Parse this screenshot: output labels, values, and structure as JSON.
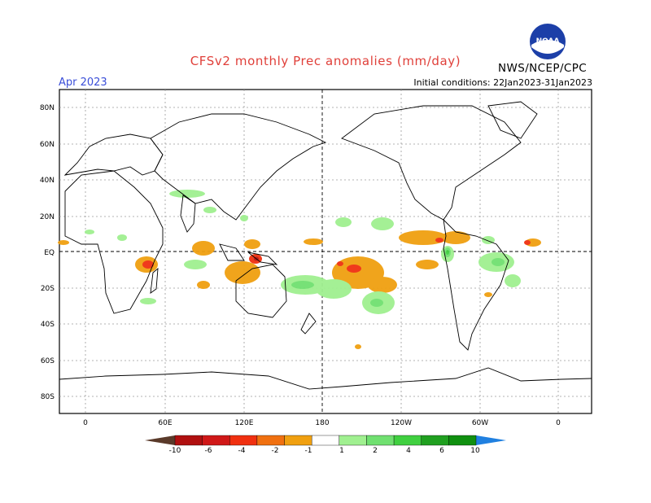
{
  "header": {
    "title": "CFSv2 monthly Prec anomalies (mm/day)",
    "month": "Apr 2023",
    "initial_conditions": "Initial conditions: 22Jan2023-31Jan2023",
    "agency": "NWS/NCEP/CPC",
    "logo_text": "NOAA"
  },
  "axes": {
    "lat_labels": [
      "80N",
      "60N",
      "40N",
      "20N",
      "EQ",
      "20S",
      "40S",
      "60S",
      "80S"
    ],
    "lon_labels": [
      "0",
      "60E",
      "120E",
      "180",
      "120W",
      "60W",
      "0"
    ]
  },
  "colorbar": {
    "labels": [
      "-10",
      "-6",
      "-4",
      "-2",
      "-1",
      "1",
      "2",
      "4",
      "6",
      "10"
    ],
    "colors": [
      "#5a3a2a",
      "#b01010",
      "#d01818",
      "#f03010",
      "#f07010",
      "#f0a010",
      "#ffffff",
      "#a0f090",
      "#70e070",
      "#40d040",
      "#20a020",
      "#109010",
      "#2080e0"
    ]
  }
}
